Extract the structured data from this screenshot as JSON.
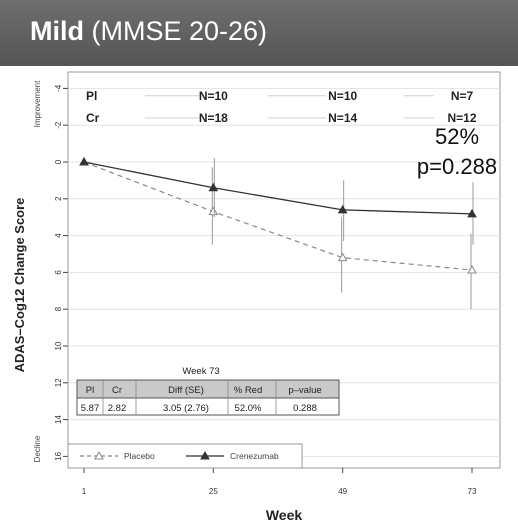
{
  "banner": {
    "title_bold": "Mild",
    "title_rest": " (MMSE 20-26)"
  },
  "chart_data": {
    "type": "line",
    "xlabel": "Week",
    "ylabel": "ADAS–Cog12 Change Score",
    "x": [
      1,
      25,
      49,
      73
    ],
    "x_tick_labels": [
      "1",
      "25",
      "49",
      "73"
    ],
    "ylim": [
      -4,
      17
    ],
    "y_inverted": true,
    "y_ticks": [
      -4,
      -2,
      0,
      2,
      4,
      6,
      8,
      10,
      12,
      14,
      16
    ],
    "y_tick_labels": [
      "-4",
      "-2",
      "0",
      "2",
      "4",
      "6",
      "8",
      "10",
      "12",
      "14",
      "16"
    ],
    "side_labels": {
      "top": "Improvement",
      "bottom": "Decline"
    },
    "grid": true,
    "series": [
      {
        "name": "Placebo",
        "style": "dashed",
        "marker": "open-triangle",
        "color": "#888888",
        "values": [
          0,
          2.7,
          5.2,
          5.87
        ],
        "error_low": [
          null,
          0.3,
          3.0,
          3.9
        ],
        "error_high": [
          null,
          4.5,
          7.1,
          8.0
        ]
      },
      {
        "name": "Crenezumab",
        "style": "solid",
        "marker": "filled-triangle",
        "color": "#333333",
        "values": [
          0,
          1.4,
          2.6,
          2.82
        ],
        "error_low": [
          null,
          -0.2,
          1.0,
          1.1
        ],
        "error_high": [
          null,
          3.0,
          4.3,
          4.5
        ]
      }
    ],
    "n_table": {
      "rows": [
        {
          "label": "Pl",
          "values": [
            "N=10",
            "N=10",
            "N=7"
          ]
        },
        {
          "label": "Cr",
          "values": [
            "N=18",
            "N=14",
            "N=12"
          ]
        }
      ]
    },
    "annotation": {
      "reduction": "52%",
      "pvalue": "p=0.288"
    },
    "summary_table": {
      "title": "Week 73",
      "headers": [
        "Pl",
        "Cr",
        "Diff (SE)",
        "% Red",
        "p–value"
      ],
      "row": [
        "5.87",
        "2.82",
        "3.05 (2.76)",
        "52.0%",
        "0.288"
      ]
    },
    "legend": {
      "position": "bottom-left",
      "entries": [
        "Placebo",
        "Crenezumab"
      ]
    }
  }
}
